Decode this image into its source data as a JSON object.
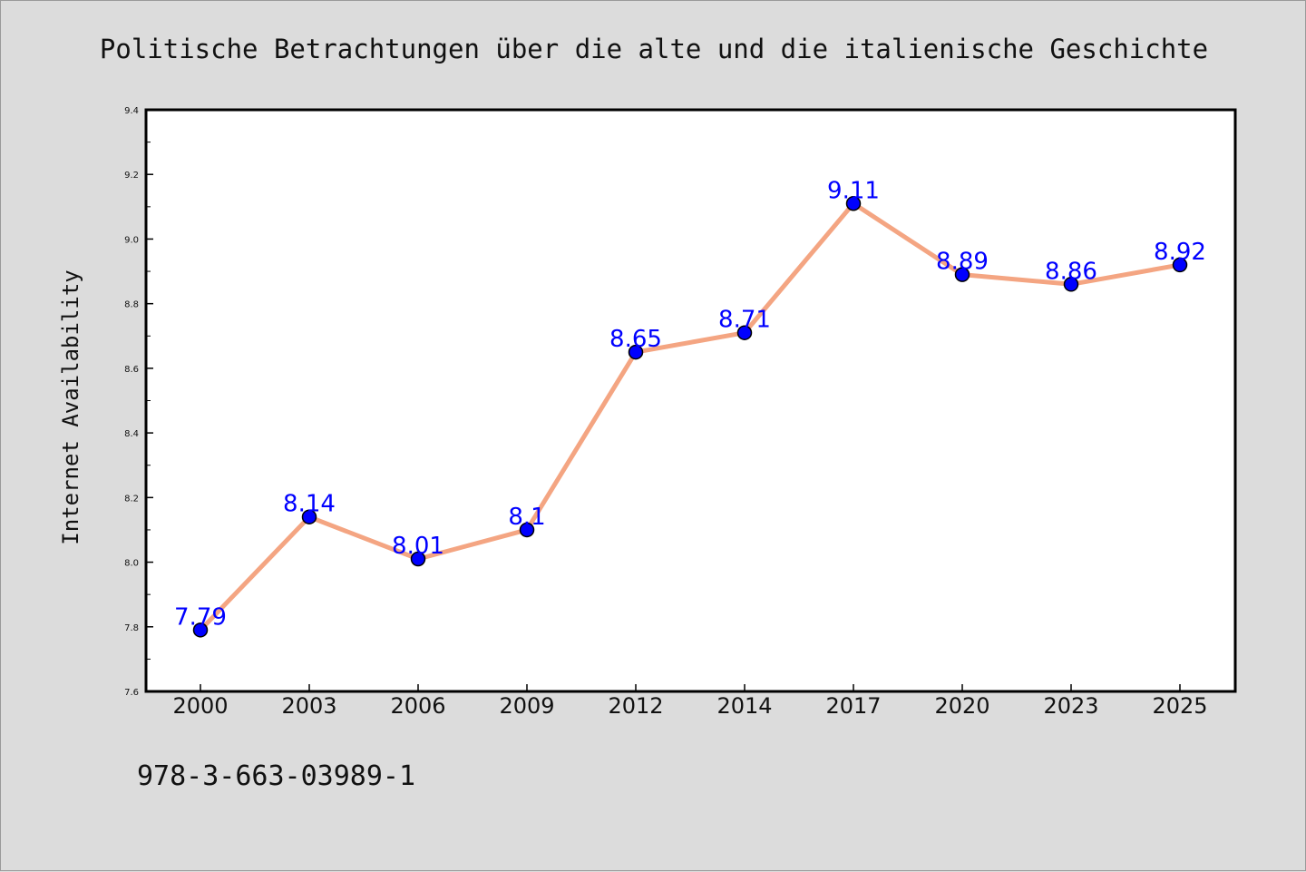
{
  "chart_data": {
    "type": "line",
    "title": "Politische Betrachtungen über die alte und die italienische Geschichte",
    "xlabel": "",
    "ylabel": "Internet Availability",
    "categories": [
      "2000",
      "2003",
      "2006",
      "2009",
      "2012",
      "2014",
      "2017",
      "2020",
      "2023",
      "2025"
    ],
    "series": [
      {
        "values": [
          7.79,
          8.14,
          8.01,
          8.1,
          8.65,
          8.71,
          9.11,
          8.89,
          8.86,
          8.92
        ]
      }
    ],
    "data_labels": [
      "7.79",
      "8.14",
      "8.01",
      "8.1",
      "8.65",
      "8.71",
      "9.11",
      "8.89",
      "8.86",
      "8.92"
    ],
    "ylim": [
      7.6,
      9.4
    ],
    "yticks": [
      "7.6",
      "7.8",
      "8.0",
      "8.2",
      "8.4",
      "8.6",
      "8.8",
      "9.0",
      "9.2",
      "9.4"
    ],
    "grid": false,
    "colors": {
      "line": "#f4a582",
      "marker": "#0000ff",
      "label": "#0000ff",
      "background": "#dcdcdc",
      "plot_background": "#ffffff"
    }
  },
  "footer_text": "978-3-663-03989-1"
}
